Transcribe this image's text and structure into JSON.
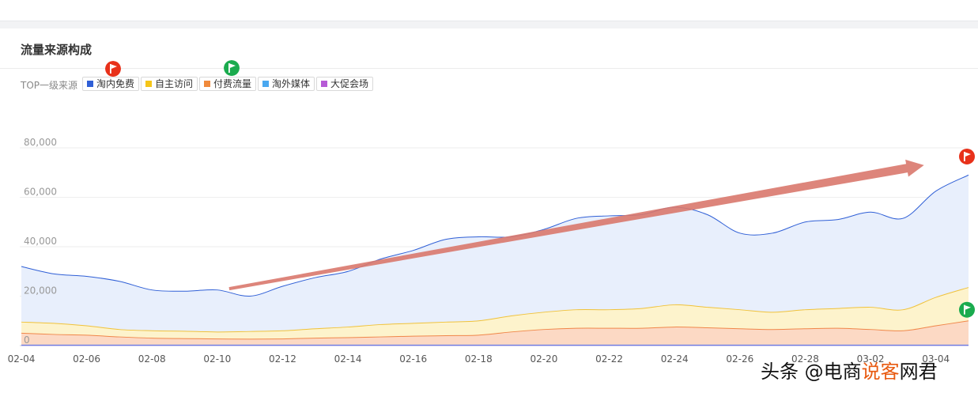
{
  "panel": {
    "title": "流量来源构成",
    "legend_label": "TOP一级来源"
  },
  "legend": [
    {
      "label": "淘内免费",
      "color": "#2f5fd6"
    },
    {
      "label": "自主访问",
      "color": "#f5c518"
    },
    {
      "label": "付费流量",
      "color": "#f08a3c"
    },
    {
      "label": "淘外媒体",
      "color": "#4aa8f0"
    },
    {
      "label": "大促会场",
      "color": "#b65bd6"
    }
  ],
  "watermark": {
    "prefix": "头条 @电商",
    "highlight": "说客",
    "suffix": "网君"
  },
  "chart_data": {
    "type": "area",
    "title": "",
    "xlabel": "",
    "ylabel": "",
    "ylim": [
      0,
      80000
    ],
    "yticks": [
      0,
      20000,
      40000,
      60000,
      80000
    ],
    "ytick_labels": [
      "0",
      "20,000",
      "40,000",
      "60,000",
      "80,000"
    ],
    "grid": true,
    "x": [
      "02-04",
      "02-05",
      "02-06",
      "02-07",
      "02-08",
      "02-09",
      "02-10",
      "02-11",
      "02-12",
      "02-13",
      "02-14",
      "02-15",
      "02-16",
      "02-17",
      "02-18",
      "02-19",
      "02-20",
      "02-21",
      "02-22",
      "02-23",
      "02-24",
      "02-25",
      "02-26",
      "02-27",
      "02-28",
      "03-01",
      "03-02",
      "03-03",
      "03-04",
      "03-05"
    ],
    "xtick_labels": [
      "02-04",
      "02-06",
      "02-08",
      "02-10",
      "02-12",
      "02-14",
      "02-16",
      "02-18",
      "02-20",
      "02-22",
      "02-24",
      "02-26",
      "02-28",
      "03-02",
      "03-04"
    ],
    "series": [
      {
        "name": "淘内免费",
        "color": "#2f5fd6",
        "fill": "#e8effc",
        "values": [
          32000,
          29000,
          28000,
          26000,
          22500,
          22000,
          22500,
          20000,
          24000,
          27500,
          30000,
          35000,
          38500,
          43000,
          44000,
          44000,
          47000,
          51500,
          52500,
          53000,
          56000,
          53000,
          45500,
          45500,
          50000,
          51000,
          54000,
          51500,
          62500,
          69000
        ]
      },
      {
        "name": "自主访问",
        "color": "#f0c23a",
        "fill": "#fdf3cc",
        "values": [
          9500,
          9000,
          8000,
          6500,
          6000,
          5800,
          5500,
          5700,
          6000,
          6800,
          7500,
          8500,
          9000,
          9500,
          10000,
          12000,
          13500,
          14500,
          14500,
          15000,
          16500,
          15500,
          14500,
          13500,
          14500,
          15000,
          15500,
          14500,
          19500,
          23500
        ]
      },
      {
        "name": "付费流量",
        "color": "#f0874a",
        "fill": "#fcd9c4",
        "values": [
          5000,
          4500,
          4200,
          3500,
          3000,
          2800,
          2700,
          2600,
          2700,
          3000,
          3200,
          3500,
          3800,
          4000,
          4200,
          5500,
          6500,
          7000,
          7000,
          7000,
          7500,
          7200,
          6800,
          6500,
          6800,
          7000,
          6500,
          6000,
          8000,
          10000
        ]
      },
      {
        "name": "淘外媒体",
        "color": "#4aa8f0",
        "fill": "none",
        "values": [
          200,
          200,
          200,
          200,
          200,
          200,
          200,
          200,
          200,
          200,
          200,
          200,
          200,
          200,
          200,
          200,
          200,
          200,
          200,
          200,
          200,
          200,
          200,
          200,
          200,
          200,
          200,
          200,
          200,
          200
        ]
      },
      {
        "name": "大促会场",
        "color": "#7b6be0",
        "fill": "none",
        "values": [
          100,
          100,
          100,
          100,
          100,
          100,
          100,
          100,
          100,
          100,
          100,
          100,
          100,
          100,
          100,
          100,
          100,
          100,
          100,
          100,
          100,
          100,
          100,
          100,
          100,
          100,
          100,
          100,
          100,
          100
        ]
      }
    ],
    "annotations": [
      {
        "type": "trend-arrow",
        "from": [
          "02-10",
          23000
        ],
        "to": [
          "03-04",
          73000
        ],
        "color": "#d9786d"
      },
      {
        "type": "flag",
        "color": "#e8311a",
        "at": [
          "03-05",
          76500
        ]
      },
      {
        "type": "flag",
        "color": "#1aab4e",
        "at": [
          "03-05",
          14500
        ]
      }
    ]
  }
}
